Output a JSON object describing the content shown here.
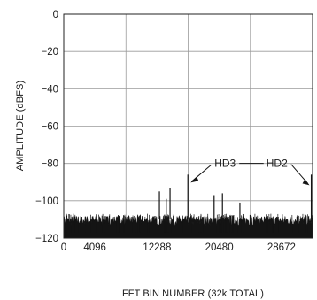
{
  "chart_data": {
    "type": "line",
    "title": "",
    "xlabel": "FFT BIN NUMBER (32k TOTAL)",
    "ylabel": "AMPLITUDE (dBFS)",
    "xlim": [
      0,
      32768
    ],
    "ylim": [
      -120,
      0
    ],
    "xticks": [
      0,
      4096,
      12288,
      20480,
      28672
    ],
    "xtick_labels": [
      "0",
      "4096",
      "12288",
      "20480",
      "28672"
    ],
    "yticks": [
      0,
      -20,
      -40,
      -60,
      -80,
      -100,
      -120
    ],
    "ytick_labels": [
      "0",
      "−20",
      "−40",
      "−60",
      "−80",
      "−100",
      "−120"
    ],
    "x_gridlines": [
      8192,
      16384,
      24576
    ],
    "y_gridlines": [
      -20,
      -40,
      -60,
      -80,
      -100
    ],
    "grid": true,
    "legend": "none",
    "noise_floor": {
      "x_range": [
        0,
        32768
      ],
      "y_range": [
        -120,
        -108
      ]
    },
    "spurs": [
      {
        "x": 12600,
        "y": -95
      },
      {
        "x": 13500,
        "y": -99
      },
      {
        "x": 14000,
        "y": -93
      },
      {
        "x": 16350,
        "y": -86
      },
      {
        "x": 19800,
        "y": -97
      },
      {
        "x": 20900,
        "y": -96
      },
      {
        "x": 23200,
        "y": -101
      },
      {
        "x": 32600,
        "y": -86
      }
    ],
    "annotations": [
      {
        "label": "HD3",
        "target": {
          "x": 16350,
          "y": -86
        }
      },
      {
        "label": "HD2",
        "target": {
          "x": 32600,
          "y": -86
        }
      }
    ]
  }
}
